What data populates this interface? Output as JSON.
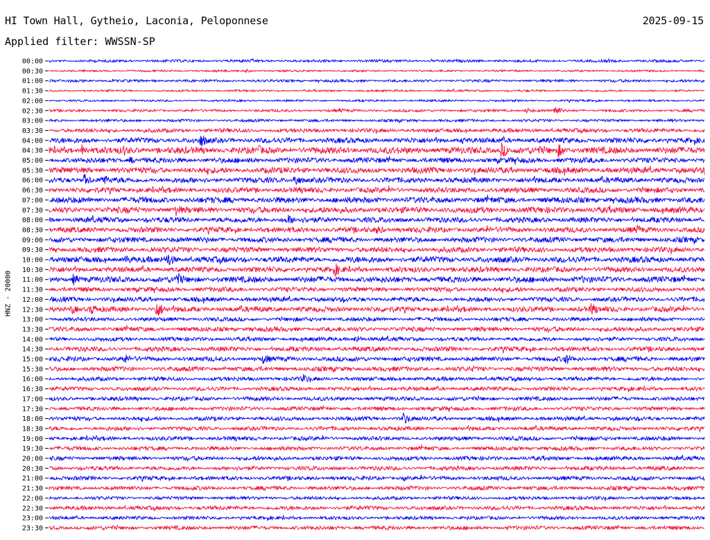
{
  "header": {
    "station": "HI Town Hall, Gytheio, Laconia, Peloponnese",
    "date": "2025-09-15",
    "filter": "Applied filter: WWSSN-SP"
  },
  "chart_data": {
    "type": "line",
    "title": "HI Town Hall, Gytheio, Laconia, Peloponnese",
    "ylabel": "HNZ - 20000",
    "trace_labels": [
      "00:00",
      "00:30",
      "01:00",
      "01:30",
      "02:00",
      "02:30",
      "03:00",
      "03:30",
      "04:00",
      "04:30",
      "05:00",
      "05:30",
      "06:00",
      "06:30",
      "07:00",
      "07:30",
      "08:00",
      "08:30",
      "09:00",
      "09:30",
      "10:00",
      "10:30",
      "11:00",
      "11:30",
      "12:00",
      "12:30",
      "13:00",
      "13:30",
      "14:00",
      "14:30",
      "15:00",
      "15:30",
      "16:00",
      "16:30",
      "17:00",
      "17:30",
      "18:00",
      "18:30",
      "19:00",
      "19:30",
      "20:00",
      "20:30",
      "21:00",
      "21:30",
      "22:00",
      "22:30",
      "23:00",
      "23:30"
    ],
    "trace_minutes": 30,
    "series_colors": [
      "#0000ee",
      "#ee0f3c"
    ],
    "noise_level": [
      2,
      1.5,
      2,
      1.5,
      1.5,
      2,
      2,
      3,
      4,
      5,
      4,
      4.5,
      4,
      4,
      4.5,
      4.5,
      4,
      4,
      4,
      4,
      4.5,
      4,
      4.5,
      3.5,
      3.5,
      4,
      3,
      3.5,
      3,
      3.5,
      3.5,
      3.5,
      3,
      3,
      3,
      3,
      3,
      3,
      3,
      3,
      3,
      3,
      3,
      3,
      2.5,
      3,
      2.5,
      3
    ],
    "events": [
      {
        "trace": "00:30",
        "minute": 7.5,
        "amp": 3
      },
      {
        "trace": "00:30",
        "minute": 9,
        "amp": 3
      },
      {
        "trace": "02:30",
        "minute": 13.3,
        "amp": 4
      },
      {
        "trace": "02:30",
        "minute": 21.8,
        "amp": 5
      },
      {
        "trace": "02:30",
        "minute": 23.1,
        "amp": 9
      },
      {
        "trace": "04:00",
        "minute": 6.9,
        "amp": 12
      },
      {
        "trace": "04:00",
        "minute": 18.9,
        "amp": 6
      },
      {
        "trace": "04:30",
        "minute": 1.5,
        "amp": 10
      },
      {
        "trace": "04:30",
        "minute": 3.4,
        "amp": 9
      },
      {
        "trace": "04:30",
        "minute": 5.0,
        "amp": 4
      },
      {
        "trace": "04:30",
        "minute": 9.6,
        "amp": 8
      },
      {
        "trace": "04:30",
        "minute": 20.7,
        "amp": 12
      },
      {
        "trace": "04:30",
        "minute": 22.4,
        "amp": 7
      },
      {
        "trace": "04:30",
        "minute": 23.3,
        "amp": 11
      },
      {
        "trace": "05:00",
        "minute": 3.7,
        "amp": 6
      },
      {
        "trace": "06:00",
        "minute": 1.6,
        "amp": 10
      },
      {
        "trace": "06:00",
        "minute": 2.4,
        "amp": 11
      },
      {
        "trace": "06:00",
        "minute": 11.2,
        "amp": 11
      },
      {
        "trace": "07:30",
        "minute": 5.8,
        "amp": 10
      },
      {
        "trace": "08:00",
        "minute": 10.9,
        "amp": 9
      },
      {
        "trace": "08:30",
        "minute": 15.0,
        "amp": 8
      },
      {
        "trace": "08:30",
        "minute": 26.9,
        "amp": 8
      },
      {
        "trace": "09:00",
        "minute": 7.2,
        "amp": 5
      },
      {
        "trace": "09:30",
        "minute": 4.6,
        "amp": 7
      },
      {
        "trace": "10:00",
        "minute": 3.5,
        "amp": 8
      },
      {
        "trace": "10:00",
        "minute": 5.4,
        "amp": 12
      },
      {
        "trace": "10:30",
        "minute": 13.1,
        "amp": 10
      },
      {
        "trace": "11:00",
        "minute": 1.1,
        "amp": 9
      },
      {
        "trace": "11:00",
        "minute": 5.8,
        "amp": 12
      },
      {
        "trace": "11:00",
        "minute": 7.7,
        "amp": 4
      },
      {
        "trace": "11:00",
        "minute": 24.4,
        "amp": 6
      },
      {
        "trace": "12:00",
        "minute": 0.6,
        "amp": 6
      },
      {
        "trace": "12:30",
        "minute": 1.0,
        "amp": 8
      },
      {
        "trace": "12:30",
        "minute": 1.9,
        "amp": 10
      },
      {
        "trace": "12:30",
        "minute": 4.9,
        "amp": 14
      },
      {
        "trace": "12:30",
        "minute": 24.8,
        "amp": 11
      },
      {
        "trace": "14:00",
        "minute": 14.0,
        "amp": 7
      },
      {
        "trace": "15:00",
        "minute": 3.4,
        "amp": 9
      },
      {
        "trace": "15:00",
        "minute": 9.8,
        "amp": 9
      },
      {
        "trace": "15:00",
        "minute": 23.6,
        "amp": 10
      },
      {
        "trace": "15:30",
        "minute": 19.3,
        "amp": 6
      },
      {
        "trace": "16:00",
        "minute": 11.6,
        "amp": 8
      },
      {
        "trace": "18:00",
        "minute": 16.2,
        "amp": 10
      },
      {
        "trace": "21:00",
        "minute": 16.2,
        "amp": 5
      }
    ]
  }
}
